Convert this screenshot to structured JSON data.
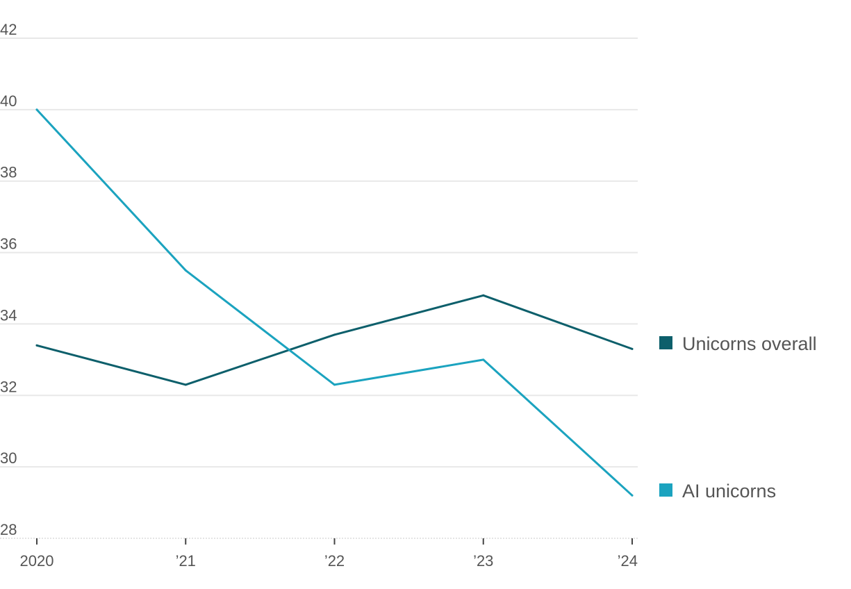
{
  "chart_data": {
    "type": "line",
    "x": [
      "2020",
      "’21",
      "’22",
      "’23",
      "’24"
    ],
    "y_ticks": [
      28,
      30,
      32,
      34,
      36,
      38,
      40,
      42
    ],
    "ylim": [
      28,
      42
    ],
    "grid": true,
    "legend_placement": "right, inline at line ends",
    "series": [
      {
        "name": "Unicorns overall",
        "color": "#0d5f6b",
        "values": [
          33.4,
          32.3,
          33.7,
          34.8,
          33.3
        ]
      },
      {
        "name": "AI unicorns",
        "color": "#1ba3bf",
        "values": [
          40.0,
          35.5,
          32.3,
          33.0,
          29.2
        ]
      }
    ]
  }
}
